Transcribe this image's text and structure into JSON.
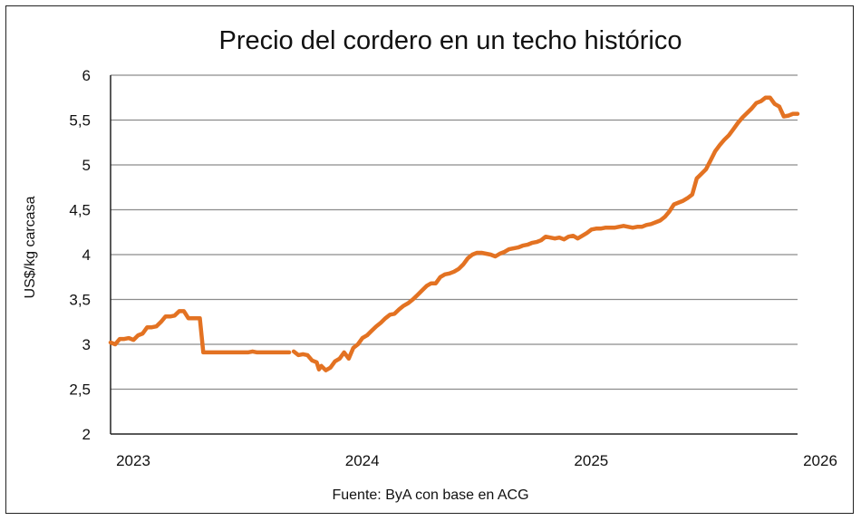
{
  "chart_data": {
    "type": "line",
    "title": "Precio del cordero en un techo histórico",
    "xlabel": "",
    "ylabel": "US$/kg carcasa",
    "source": "Fuente: ByA con base en ACG",
    "xlim": [
      2023.0,
      2026.0
    ],
    "ylim": [
      2,
      6
    ],
    "x_ticks": [
      2023,
      2024,
      2025,
      2026
    ],
    "x_tick_labels": [
      "2023",
      "2024",
      "2025",
      "2026"
    ],
    "y_ticks": [
      2,
      2.5,
      3,
      3.5,
      4,
      4.5,
      5,
      5.5,
      6
    ],
    "y_tick_labels": [
      "2",
      "2,5",
      "3",
      "3,5",
      "4",
      "4,5",
      "5",
      "5,5",
      "6"
    ],
    "grid": "horizontal",
    "legend": "none",
    "colors": {
      "line": "#E37222",
      "grid": "#8c8c8c",
      "axis": "#222222"
    },
    "series": [
      {
        "segments": [
          [
            [
              2023.0,
              3.02
            ],
            [
              2023.02,
              3.0
            ],
            [
              2023.04,
              3.06
            ],
            [
              2023.06,
              3.06
            ],
            [
              2023.08,
              3.07
            ],
            [
              2023.1,
              3.05
            ],
            [
              2023.12,
              3.1
            ],
            [
              2023.14,
              3.12
            ],
            [
              2023.16,
              3.19
            ],
            [
              2023.18,
              3.19
            ],
            [
              2023.2,
              3.2
            ],
            [
              2023.22,
              3.25
            ],
            [
              2023.24,
              3.31
            ],
            [
              2023.26,
              3.31
            ],
            [
              2023.28,
              3.32
            ],
            [
              2023.3,
              3.37
            ],
            [
              2023.32,
              3.37
            ],
            [
              2023.34,
              3.29
            ],
            [
              2023.36,
              3.29
            ],
            [
              2023.38,
              3.29
            ],
            [
              2023.39,
              3.29
            ],
            [
              2023.405,
              2.91
            ],
            [
              2023.45,
              2.91
            ],
            [
              2023.5,
              2.91
            ],
            [
              2023.55,
              2.91
            ],
            [
              2023.6,
              2.91
            ],
            [
              2023.62,
              2.92
            ],
            [
              2023.64,
              2.91
            ],
            [
              2023.7,
              2.91
            ],
            [
              2023.78,
              2.91
            ]
          ],
          [
            [
              2023.8,
              2.92
            ],
            [
              2023.82,
              2.88
            ],
            [
              2023.84,
              2.89
            ],
            [
              2023.86,
              2.88
            ],
            [
              2023.88,
              2.82
            ],
            [
              2023.9,
              2.8
            ],
            [
              2023.91,
              2.72
            ],
            [
              2023.92,
              2.76
            ],
            [
              2023.94,
              2.71
            ],
            [
              2023.96,
              2.74
            ],
            [
              2023.98,
              2.81
            ],
            [
              2024.0,
              2.84
            ],
            [
              2024.02,
              2.91
            ],
            [
              2024.04,
              2.84
            ],
            [
              2024.06,
              2.96
            ],
            [
              2024.08,
              3.0
            ],
            [
              2024.1,
              3.07
            ],
            [
              2024.12,
              3.1
            ],
            [
              2024.14,
              3.15
            ],
            [
              2024.16,
              3.2
            ],
            [
              2024.18,
              3.24
            ],
            [
              2024.2,
              3.29
            ],
            [
              2024.22,
              3.33
            ],
            [
              2024.24,
              3.34
            ],
            [
              2024.26,
              3.39
            ],
            [
              2024.28,
              3.43
            ],
            [
              2024.3,
              3.46
            ],
            [
              2024.32,
              3.5
            ],
            [
              2024.34,
              3.55
            ],
            [
              2024.36,
              3.6
            ],
            [
              2024.38,
              3.65
            ],
            [
              2024.4,
              3.68
            ],
            [
              2024.42,
              3.68
            ],
            [
              2024.44,
              3.75
            ],
            [
              2024.46,
              3.78
            ],
            [
              2024.48,
              3.79
            ],
            [
              2024.5,
              3.81
            ],
            [
              2024.52,
              3.84
            ],
            [
              2024.54,
              3.89
            ],
            [
              2024.56,
              3.96
            ],
            [
              2024.58,
              4.0
            ],
            [
              2024.6,
              4.02
            ],
            [
              2024.62,
              4.02
            ],
            [
              2024.64,
              4.01
            ],
            [
              2024.66,
              4.0
            ],
            [
              2024.68,
              3.98
            ],
            [
              2024.7,
              4.01
            ],
            [
              2024.72,
              4.03
            ],
            [
              2024.74,
              4.06
            ],
            [
              2024.76,
              4.07
            ],
            [
              2024.78,
              4.08
            ],
            [
              2024.8,
              4.1
            ],
            [
              2024.82,
              4.11
            ],
            [
              2024.84,
              4.13
            ],
            [
              2024.86,
              4.14
            ],
            [
              2024.88,
              4.16
            ],
            [
              2024.9,
              4.2
            ],
            [
              2024.92,
              4.19
            ],
            [
              2024.94,
              4.18
            ],
            [
              2024.96,
              4.19
            ],
            [
              2024.98,
              4.17
            ],
            [
              2025.0,
              4.2
            ],
            [
              2025.02,
              4.21
            ],
            [
              2025.04,
              4.18
            ],
            [
              2025.06,
              4.21
            ],
            [
              2025.08,
              4.24
            ],
            [
              2025.1,
              4.28
            ],
            [
              2025.12,
              4.29
            ],
            [
              2025.14,
              4.29
            ],
            [
              2025.16,
              4.3
            ],
            [
              2025.18,
              4.3
            ],
            [
              2025.2,
              4.3
            ],
            [
              2025.22,
              4.31
            ],
            [
              2025.24,
              4.32
            ],
            [
              2025.26,
              4.31
            ],
            [
              2025.28,
              4.3
            ],
            [
              2025.3,
              4.31
            ],
            [
              2025.32,
              4.31
            ],
            [
              2025.34,
              4.33
            ],
            [
              2025.36,
              4.34
            ],
            [
              2025.38,
              4.36
            ],
            [
              2025.4,
              4.38
            ],
            [
              2025.42,
              4.42
            ],
            [
              2025.44,
              4.48
            ],
            [
              2025.46,
              4.56
            ],
            [
              2025.48,
              4.58
            ],
            [
              2025.5,
              4.6
            ],
            [
              2025.52,
              4.63
            ],
            [
              2025.54,
              4.67
            ],
            [
              2025.56,
              4.85
            ],
            [
              2025.58,
              4.9
            ],
            [
              2025.6,
              4.95
            ],
            [
              2025.62,
              5.05
            ],
            [
              2025.64,
              5.15
            ],
            [
              2025.66,
              5.22
            ],
            [
              2025.68,
              5.28
            ],
            [
              2025.7,
              5.33
            ],
            [
              2025.72,
              5.4
            ],
            [
              2025.74,
              5.47
            ],
            [
              2025.76,
              5.53
            ],
            [
              2025.78,
              5.58
            ],
            [
              2025.8,
              5.63
            ],
            [
              2025.82,
              5.69
            ],
            [
              2025.84,
              5.71
            ],
            [
              2025.86,
              5.75
            ],
            [
              2025.88,
              5.75
            ],
            [
              2025.9,
              5.68
            ],
            [
              2025.92,
              5.65
            ],
            [
              2025.94,
              5.54
            ],
            [
              2025.96,
              5.55
            ],
            [
              2025.98,
              5.57
            ],
            [
              2026.0,
              5.57
            ]
          ]
        ]
      }
    ]
  }
}
